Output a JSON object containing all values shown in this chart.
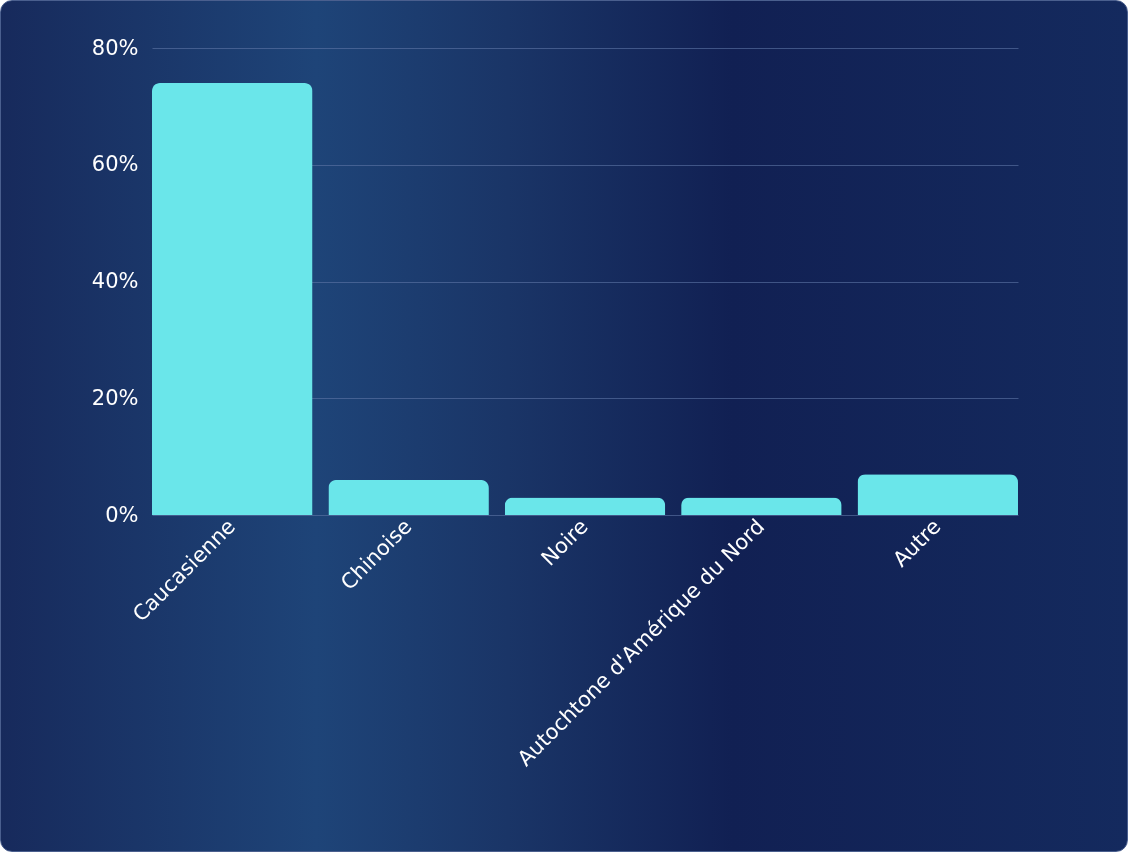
{
  "chart_data": {
    "type": "bar",
    "categories": [
      "Caucasienne",
      "Chinoise",
      "Noire",
      "Autochtone d'Amérique du Nord",
      "Autre"
    ],
    "values": [
      74,
      6,
      3,
      3,
      7
    ],
    "color": "#6ae6ea",
    "ylim": [
      0,
      80
    ],
    "yticks": [
      {
        "value": 0,
        "label": "0%"
      },
      {
        "value": 20,
        "label": "20%"
      },
      {
        "value": 40,
        "label": "40%"
      },
      {
        "value": 60,
        "label": "60%"
      },
      {
        "value": 80,
        "label": "80%"
      }
    ],
    "grid": "y"
  }
}
